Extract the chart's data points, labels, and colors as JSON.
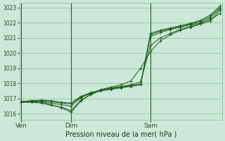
{
  "xlabel": "Pression niveau de la mer( hPa )",
  "bg_color": "#cce8d8",
  "grid_color": "#88bb99",
  "line_color": "#1a5c1a",
  "marker_color": "#1a5c1a",
  "tick_color": "#2a4a2a",
  "label_color": "#1a3a1a",
  "vline_color": "#2a5a2a",
  "ylim": [
    1015.6,
    1023.3
  ],
  "yticks": [
    1016,
    1017,
    1018,
    1019,
    1020,
    1021,
    1022,
    1023
  ],
  "xlim": [
    -0.1,
    10.1
  ],
  "x_ven": 0.0,
  "x_dim": 2.5,
  "x_sam": 6.5,
  "xtick_labels": [
    "Ven",
    "Dim",
    "Sam"
  ],
  "series": [
    [
      0.0,
      1016.75,
      0.5,
      1016.8,
      1.0,
      1016.75,
      1.5,
      1016.6,
      2.0,
      1016.4,
      2.5,
      1016.1,
      3.0,
      1016.85,
      3.5,
      1017.3,
      4.0,
      1017.6,
      4.5,
      1017.75,
      5.0,
      1017.9,
      5.5,
      1018.15,
      6.0,
      1019.0,
      6.5,
      1020.1,
      7.0,
      1020.8,
      7.5,
      1021.2,
      8.0,
      1021.5,
      8.5,
      1021.7,
      9.0,
      1021.9,
      9.5,
      1022.1,
      10.0,
      1022.8
    ],
    [
      0.0,
      1016.75,
      0.5,
      1016.75,
      1.0,
      1016.7,
      1.5,
      1016.55,
      2.0,
      1016.45,
      2.5,
      1016.2,
      3.0,
      1016.9,
      3.5,
      1017.25,
      4.0,
      1017.55,
      4.5,
      1017.7,
      5.0,
      1017.8,
      5.5,
      1017.9,
      6.0,
      1018.1,
      6.5,
      1020.5,
      7.0,
      1021.0,
      7.5,
      1021.3,
      8.0,
      1021.55,
      8.5,
      1021.75,
      9.0,
      1021.95,
      9.5,
      1022.2,
      10.0,
      1022.6
    ],
    [
      0.0,
      1016.8,
      0.5,
      1016.85,
      1.0,
      1016.8,
      1.5,
      1016.7,
      2.0,
      1016.6,
      2.5,
      1016.5,
      3.0,
      1017.05,
      3.5,
      1017.35,
      4.0,
      1017.55,
      4.5,
      1017.65,
      5.0,
      1017.75,
      5.5,
      1017.85,
      6.0,
      1017.95,
      6.5,
      1021.1,
      7.0,
      1021.35,
      7.5,
      1021.55,
      8.0,
      1021.7,
      8.5,
      1021.85,
      9.0,
      1022.0,
      9.5,
      1022.3,
      10.0,
      1022.9
    ],
    [
      0.0,
      1016.8,
      0.5,
      1016.85,
      1.0,
      1016.85,
      1.5,
      1016.8,
      2.0,
      1016.7,
      2.5,
      1016.65,
      3.0,
      1017.1,
      3.5,
      1017.35,
      4.0,
      1017.5,
      4.5,
      1017.6,
      5.0,
      1017.7,
      5.5,
      1017.8,
      6.0,
      1017.9,
      6.5,
      1021.2,
      7.0,
      1021.45,
      7.5,
      1021.6,
      8.0,
      1021.75,
      8.5,
      1021.9,
      9.0,
      1022.1,
      9.5,
      1022.4,
      10.0,
      1023.0
    ],
    [
      0.0,
      1016.8,
      0.5,
      1016.85,
      1.0,
      1016.9,
      1.5,
      1016.85,
      2.0,
      1016.75,
      2.5,
      1016.7,
      3.0,
      1017.15,
      3.5,
      1017.4,
      4.0,
      1017.55,
      4.5,
      1017.65,
      5.0,
      1017.75,
      5.5,
      1017.85,
      6.0,
      1017.95,
      6.5,
      1021.3,
      7.0,
      1021.5,
      7.5,
      1021.65,
      8.0,
      1021.8,
      8.5,
      1021.95,
      9.0,
      1022.15,
      9.5,
      1022.5,
      10.0,
      1023.1
    ]
  ]
}
